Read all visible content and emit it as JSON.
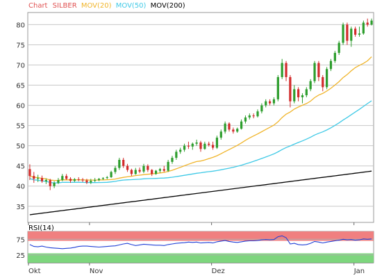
{
  "chart_data": [
    {
      "type": "candlestick",
      "title_prefix": "Chart",
      "symbol": "SILBER",
      "legend": [
        {
          "label": "MOV(20)",
          "color": "#f0b429"
        },
        {
          "label": "MOV(50)",
          "color": "#3ec9e6"
        },
        {
          "label": "MOV(200)",
          "color": "#000000"
        }
      ],
      "ylim": [
        31,
        83
      ],
      "y_ticks": [
        35,
        40,
        45,
        50,
        55,
        60,
        65,
        70,
        75,
        80
      ],
      "x_month_labels": [
        {
          "label": "Okt",
          "index": 0
        },
        {
          "label": "Nov",
          "index": 15
        },
        {
          "label": "Dez",
          "index": 45
        },
        {
          "label": "Jan",
          "index": 80
        }
      ],
      "up_color": "#2e9e2e",
      "down_color": "#d22b2b",
      "ohlc": [
        [
          44.2,
          45.4,
          41.5,
          42.5
        ],
        [
          42.5,
          43.5,
          40.8,
          41.8
        ],
        [
          41.8,
          42.8,
          41.0,
          42.0
        ],
        [
          42.0,
          42.6,
          40.8,
          41.2
        ],
        [
          41.2,
          41.9,
          40.5,
          41.5
        ],
        [
          41.5,
          41.8,
          39.0,
          40.0
        ],
        [
          40.0,
          41.2,
          39.5,
          40.8
        ],
        [
          40.8,
          42.0,
          40.5,
          41.5
        ],
        [
          41.5,
          43.0,
          41.2,
          42.5
        ],
        [
          42.5,
          43.0,
          41.5,
          41.8
        ],
        [
          41.8,
          42.2,
          40.8,
          41.3
        ],
        [
          41.3,
          42.0,
          41.0,
          41.7
        ],
        [
          41.7,
          42.2,
          41.2,
          41.6
        ],
        [
          41.6,
          42.0,
          41.0,
          41.4
        ],
        [
          41.4,
          41.8,
          40.5,
          40.9
        ],
        [
          40.9,
          41.8,
          40.5,
          41.3
        ],
        [
          41.3,
          42.0,
          41.0,
          41.5
        ],
        [
          41.5,
          42.0,
          41.2,
          41.8
        ],
        [
          41.8,
          42.2,
          41.5,
          42.0
        ],
        [
          42.0,
          42.5,
          41.7,
          42.2
        ],
        [
          42.2,
          43.8,
          42.0,
          43.5
        ],
        [
          43.5,
          45.0,
          43.0,
          44.5
        ],
        [
          44.5,
          47.0,
          44.0,
          46.5
        ],
        [
          46.5,
          47.0,
          44.5,
          45.0
        ],
        [
          45.0,
          45.5,
          43.5,
          44.0
        ],
        [
          44.0,
          44.3,
          42.5,
          43.0
        ],
        [
          43.0,
          44.5,
          42.8,
          44.0
        ],
        [
          44.0,
          44.6,
          43.2,
          43.6
        ],
        [
          43.6,
          45.5,
          43.2,
          45.0
        ],
        [
          45.0,
          45.4,
          43.5,
          44.0
        ],
        [
          44.0,
          44.2,
          42.5,
          43.0
        ],
        [
          43.0,
          44.0,
          42.8,
          43.8
        ],
        [
          43.8,
          44.5,
          43.3,
          44.2
        ],
        [
          44.2,
          45.0,
          43.5,
          43.8
        ],
        [
          43.8,
          46.5,
          43.5,
          46.0
        ],
        [
          46.0,
          47.5,
          45.5,
          47.0
        ],
        [
          47.0,
          49.0,
          46.5,
          48.5
        ],
        [
          48.5,
          49.5,
          48.0,
          49.0
        ],
        [
          49.0,
          50.5,
          48.5,
          50.0
        ],
        [
          50.0,
          51.0,
          49.2,
          49.8
        ],
        [
          49.8,
          50.8,
          49.0,
          50.5
        ],
        [
          50.5,
          51.5,
          50.0,
          50.8
        ],
        [
          50.8,
          51.2,
          48.5,
          49.2
        ],
        [
          49.2,
          51.0,
          49.0,
          50.5
        ],
        [
          50.5,
          51.0,
          49.8,
          50.2
        ],
        [
          50.2,
          51.0,
          49.0,
          49.5
        ],
        [
          49.5,
          52.5,
          49.2,
          52.0
        ],
        [
          52.0,
          54.0,
          51.5,
          53.5
        ],
        [
          53.5,
          56.0,
          53.0,
          55.5
        ],
        [
          55.5,
          55.8,
          53.5,
          54.0
        ],
        [
          54.0,
          54.5,
          53.0,
          53.5
        ],
        [
          53.5,
          54.5,
          53.2,
          54.2
        ],
        [
          54.2,
          56.5,
          54.0,
          56.0
        ],
        [
          56.0,
          57.5,
          55.5,
          57.0
        ],
        [
          57.0,
          58.0,
          56.5,
          57.5
        ],
        [
          57.5,
          58.0,
          56.8,
          57.3
        ],
        [
          57.3,
          59.0,
          57.0,
          58.5
        ],
        [
          58.5,
          60.5,
          58.0,
          60.0
        ],
        [
          60.0,
          61.5,
          59.5,
          61.0
        ],
        [
          61.0,
          61.5,
          60.0,
          60.5
        ],
        [
          60.5,
          62.0,
          60.0,
          61.5
        ],
        [
          61.5,
          67.5,
          61.0,
          67.0
        ],
        [
          67.0,
          71.5,
          66.5,
          70.5
        ],
        [
          70.5,
          71.0,
          66.0,
          67.0
        ],
        [
          67.0,
          67.5,
          59.5,
          61.0
        ],
        [
          61.0,
          65.0,
          60.5,
          64.0
        ],
        [
          64.0,
          64.5,
          61.0,
          62.0
        ],
        [
          62.0,
          63.0,
          60.5,
          62.5
        ],
        [
          62.5,
          64.5,
          62.0,
          64.0
        ],
        [
          64.0,
          66.5,
          63.5,
          66.0
        ],
        [
          66.0,
          71.0,
          65.5,
          70.5
        ],
        [
          70.5,
          71.0,
          66.0,
          67.0
        ],
        [
          67.0,
          67.5,
          63.5,
          64.5
        ],
        [
          64.5,
          69.5,
          64.0,
          69.0
        ],
        [
          69.0,
          71.5,
          68.5,
          71.0
        ],
        [
          71.0,
          73.5,
          70.5,
          73.0
        ],
        [
          73.0,
          76.0,
          72.5,
          75.5
        ],
        [
          75.5,
          80.5,
          75.0,
          80.0
        ],
        [
          80.0,
          80.5,
          75.0,
          76.0
        ],
        [
          76.0,
          79.5,
          74.5,
          79.0
        ],
        [
          79.0,
          79.5,
          77.0,
          77.5
        ],
        [
          77.5,
          79.5,
          77.0,
          77.8
        ],
        [
          77.8,
          81.0,
          77.5,
          80.5
        ],
        [
          80.5,
          81.5,
          79.5,
          80.0
        ],
        [
          80.0,
          81.5,
          79.8,
          81.0
        ]
      ],
      "rsi": {
        "label": "RSI(14)",
        "ylim": [
          0,
          100
        ],
        "y_ticks": [
          25,
          75
        ],
        "upper_band": 70,
        "lower_band": 30,
        "upper_zone_color": "#f08080",
        "lower_zone_color": "#7dd67d",
        "line_color": "#1f3fd6",
        "values": [
          58,
          52,
          51,
          53,
          50,
          48,
          47,
          46,
          45,
          46,
          47,
          49,
          52,
          53,
          53,
          52,
          51,
          50,
          51,
          52,
          53,
          54,
          57,
          60,
          62,
          58,
          55,
          57,
          59,
          58,
          57,
          56,
          56,
          55,
          58,
          60,
          62,
          63,
          64,
          66,
          65,
          66,
          63,
          64,
          65,
          63,
          67,
          69,
          71,
          68,
          66,
          65,
          67,
          69,
          70,
          70,
          71,
          73,
          74,
          73,
          74,
          83,
          86,
          80,
          60,
          62,
          58,
          57,
          58,
          62,
          68,
          66,
          63,
          66,
          68,
          70,
          72,
          75,
          73,
          74,
          72,
          73,
          76,
          75,
          76
        ]
      }
    }
  ]
}
